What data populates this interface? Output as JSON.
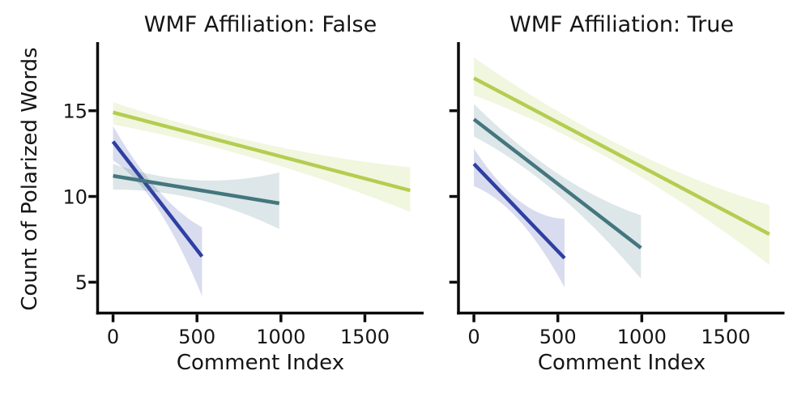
{
  "figure": {
    "background": "#ffffff",
    "text_color": "#151515",
    "axis_color": "#0a0a0a"
  },
  "chart_data": {
    "type": "line",
    "subtype": "linear-regression-with-confidence-bands",
    "xlabel": "Comment Index",
    "ylabel": "Count of Polarized Words",
    "xlim": [
      -92,
      1850
    ],
    "ylim": [
      3.2,
      19.0
    ],
    "xticks": [
      0,
      500,
      1000,
      1500
    ],
    "yticks": [
      5,
      10,
      15
    ],
    "grid": false,
    "legend": "none",
    "band_alpha": 0.18,
    "panels": [
      {
        "title": "WMF Affiliation: False",
        "series": [
          {
            "name": "blue",
            "color": "#2e3fa3",
            "x": [
              0,
              530
            ],
            "y": [
              13.2,
              6.5
            ],
            "ci": {
              "x": [
                0,
                265,
                530
              ],
              "lo": [
                12.1,
                9.3,
                4.2
              ],
              "hi": [
                14.1,
                10.4,
                8.2
              ]
            }
          },
          {
            "name": "teal",
            "color": "#44767e",
            "x": [
              0,
              990
            ],
            "y": [
              11.2,
              9.6
            ],
            "ci": {
              "x": [
                0,
                495,
                990
              ],
              "lo": [
                10.4,
                9.85,
                8.1
              ],
              "hi": [
                11.9,
                10.95,
                11.4
              ]
            }
          },
          {
            "name": "yellow-green",
            "color": "#b4cd50",
            "x": [
              0,
              1770
            ],
            "y": [
              14.9,
              10.35
            ],
            "ci": {
              "x": [
                0,
                885,
                1770
              ],
              "lo": [
                14.2,
                12.1,
                9.1
              ],
              "hi": [
                15.5,
                13.1,
                11.7
              ]
            }
          }
        ]
      },
      {
        "title": "WMF Affiliation: True",
        "series": [
          {
            "name": "blue",
            "color": "#2e3fa3",
            "x": [
              0,
              540
            ],
            "y": [
              11.9,
              6.4
            ],
            "ci": {
              "x": [
                0,
                270,
                540
              ],
              "lo": [
                10.6,
                8.6,
                4.7
              ],
              "hi": [
                12.8,
                9.75,
                8.7
              ]
            }
          },
          {
            "name": "teal",
            "color": "#44767e",
            "x": [
              0,
              995
            ],
            "y": [
              14.5,
              7.0
            ],
            "ci": {
              "x": [
                0,
                497,
                995
              ],
              "lo": [
                13.5,
                10.15,
                5.2
              ],
              "hi": [
                15.4,
                11.35,
                8.9
              ]
            }
          },
          {
            "name": "yellow-green",
            "color": "#b4cd50",
            "x": [
              0,
              1760
            ],
            "y": [
              16.9,
              7.8
            ],
            "ci": {
              "x": [
                0,
                880,
                1760
              ],
              "lo": [
                15.9,
                11.8,
                6.0
              ],
              "hi": [
                18.1,
                12.95,
                9.5
              ]
            }
          }
        ]
      }
    ]
  }
}
